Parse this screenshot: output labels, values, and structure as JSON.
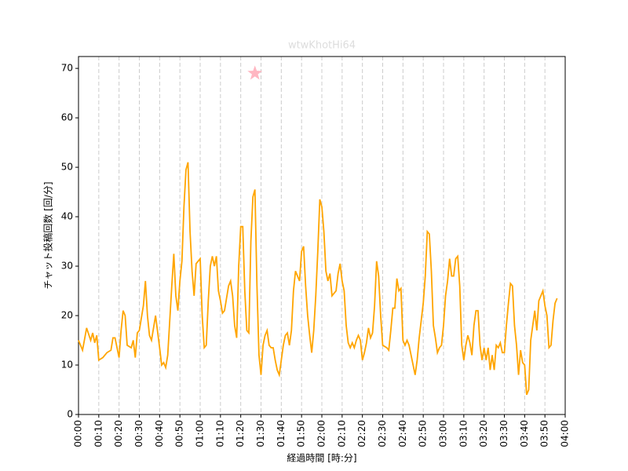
{
  "chart_data": {
    "type": "line",
    "title": "wtwKhotHi64",
    "xlabel": "経過時間 [時:分]",
    "ylabel": "チャット投稿回数 [回/分]",
    "series": [
      {
        "color": "#ffa500",
        "marker": "none",
        "x": [
          0,
          2,
          4,
          6,
          7,
          8,
          9,
          10,
          12,
          14,
          16,
          17,
          18,
          20,
          21,
          22,
          23,
          24,
          26,
          27,
          28,
          29,
          30,
          32,
          33,
          34,
          35,
          36,
          38,
          40,
          41,
          42,
          43,
          44,
          46,
          47,
          48,
          49,
          50,
          51,
          52,
          53,
          54,
          55,
          56,
          57,
          58,
          60,
          61,
          62,
          63,
          64,
          65,
          66,
          67,
          68,
          69,
          70,
          71,
          72,
          74,
          75,
          76,
          77,
          78,
          79,
          80,
          81,
          82,
          83,
          84,
          85,
          86,
          87,
          88,
          89,
          90,
          91,
          92,
          93,
          94,
          95,
          96,
          97,
          98,
          99,
          100,
          101,
          102,
          103,
          104,
          105,
          106,
          107,
          108,
          109,
          110,
          111,
          112,
          113,
          114,
          115,
          116,
          117,
          118,
          119,
          120,
          121,
          122,
          123,
          124,
          125,
          126,
          127,
          128,
          129,
          130,
          131,
          132,
          133,
          134,
          135,
          136,
          137,
          138,
          139,
          140,
          141,
          142,
          143,
          144,
          145,
          146,
          147,
          148,
          149,
          150,
          152,
          153,
          154,
          155,
          156,
          157,
          158,
          159,
          160,
          161,
          162,
          163,
          164,
          165,
          166,
          167,
          168,
          169,
          170,
          171,
          172,
          173,
          174,
          175,
          176,
          177,
          178,
          179,
          180,
          181,
          182,
          183,
          184,
          185,
          186,
          187,
          188,
          189,
          190,
          191,
          192,
          193,
          194,
          195,
          196,
          197,
          198,
          199,
          200,
          201,
          202,
          203,
          204,
          205,
          206,
          207,
          208,
          209,
          210,
          211,
          212,
          213,
          214,
          215,
          216,
          217,
          218,
          219,
          220,
          221,
          222,
          223,
          224,
          225,
          226,
          227,
          228,
          229,
          230,
          231,
          232,
          233,
          234,
          235,
          236
        ],
        "values": [
          15,
          13,
          17.5,
          15,
          16.5,
          14.5,
          16,
          11,
          11.5,
          12.5,
          13,
          15.5,
          15.5,
          11.5,
          17,
          21,
          20,
          14,
          13.5,
          15,
          11.5,
          16.5,
          17,
          22,
          27,
          20,
          16,
          15,
          20,
          13.5,
          10,
          10.5,
          9.5,
          12,
          26,
          32.5,
          24,
          21,
          27,
          31,
          42,
          49.5,
          51,
          37,
          29,
          24,
          30.5,
          31.5,
          20,
          13.5,
          14,
          23,
          30,
          32,
          30,
          32,
          25,
          23,
          20.5,
          21,
          26,
          27,
          24,
          18,
          15.5,
          30,
          38,
          38,
          25,
          17,
          16.5,
          35,
          44,
          45.5,
          26,
          12,
          8,
          14,
          16,
          17,
          14,
          13.5,
          13.5,
          11,
          9,
          8,
          11,
          14,
          16,
          16.5,
          14,
          17,
          25,
          29,
          28,
          27,
          33,
          34,
          26,
          20,
          16,
          12.5,
          17,
          24,
          33,
          43.5,
          42,
          37,
          29,
          27,
          28.5,
          24,
          24.5,
          25,
          28.5,
          30.5,
          27,
          25,
          18,
          14.5,
          13.5,
          14.5,
          13.5,
          15,
          16,
          15,
          11,
          12.5,
          14.5,
          17.5,
          15.5,
          16.5,
          22,
          31,
          28,
          20,
          14,
          13.5,
          13,
          17,
          21.5,
          21.5,
          27.5,
          25,
          25.5,
          15,
          14,
          15,
          14,
          12,
          10,
          8,
          11,
          15.5,
          19,
          22.5,
          28,
          37,
          36.5,
          29,
          18,
          15.5,
          12.5,
          13.5,
          14,
          18,
          24,
          27,
          31.5,
          28,
          28,
          31.5,
          32,
          26,
          14,
          11,
          14,
          16,
          14.5,
          12,
          18,
          21,
          21,
          14,
          11,
          13.5,
          11,
          13.5,
          9,
          12,
          9,
          14,
          13.5,
          14.5,
          12.5,
          12.5,
          18,
          22.5,
          26.5,
          26,
          18,
          14,
          8,
          13,
          10.5,
          10,
          4,
          5,
          15,
          18,
          21,
          17,
          23,
          24,
          25,
          22,
          20,
          13.5,
          14,
          19,
          22.5,
          23.5
        ]
      },
      {
        "color": "#ffb6c1",
        "marker": "star",
        "x": [
          87
        ],
        "values": [
          69
        ]
      }
    ],
    "xlim": [
      0,
      240
    ],
    "ylim": [
      0,
      72.4
    ],
    "xticks": [
      {
        "value": 0,
        "label": "00:00"
      },
      {
        "value": 10,
        "label": "00:10"
      },
      {
        "value": 20,
        "label": "00:20"
      },
      {
        "value": 30,
        "label": "00:30"
      },
      {
        "value": 40,
        "label": "00:40"
      },
      {
        "value": 50,
        "label": "00:50"
      },
      {
        "value": 60,
        "label": "01:00"
      },
      {
        "value": 70,
        "label": "01:10"
      },
      {
        "value": 80,
        "label": "01:20"
      },
      {
        "value": 90,
        "label": "01:30"
      },
      {
        "value": 100,
        "label": "01:40"
      },
      {
        "value": 110,
        "label": "01:50"
      },
      {
        "value": 120,
        "label": "02:00"
      },
      {
        "value": 130,
        "label": "02:10"
      },
      {
        "value": 140,
        "label": "02:20"
      },
      {
        "value": 150,
        "label": "02:30"
      },
      {
        "value": 160,
        "label": "02:40"
      },
      {
        "value": 170,
        "label": "02:50"
      },
      {
        "value": 180,
        "label": "03:00"
      },
      {
        "value": 190,
        "label": "03:10"
      },
      {
        "value": 200,
        "label": "03:20"
      },
      {
        "value": 210,
        "label": "03:30"
      },
      {
        "value": 220,
        "label": "03:40"
      },
      {
        "value": 230,
        "label": "03:50"
      },
      {
        "value": 240,
        "label": "04:00"
      }
    ],
    "yticks": [
      0,
      10,
      20,
      30,
      40,
      50,
      60,
      70
    ],
    "grid": "x-dashed"
  }
}
